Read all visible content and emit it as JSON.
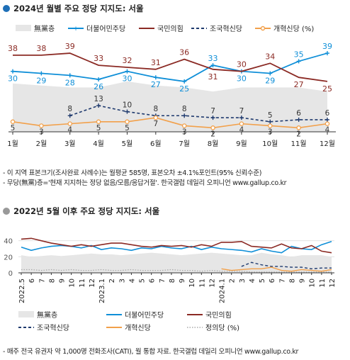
{
  "sections": {
    "top_title": "2024년 월별 주요 정당 지지도: 서울",
    "bottom_title": "2022년 5월 이후 주요 정당 지지도: 서울",
    "top_notes": [
      "- 이 지역 표본크기(조사완료 사례수)는 월평균 585명, 표본오차 ±4.1%포인트(95% 신뢰수준)",
      "- 무당(無黨)층='현재 지지하는 정당 없음/모름/응답거절'. 한국갤럽 데일리 오피니언 www.gallup.co.kr"
    ],
    "bottom_note": "- 매주 전국 유권자 약 1,000명 전화조사(CATI), 월 통합 자료. 한국갤럽 데일리 오피니언 www.gallup.co.kr"
  },
  "colors": {
    "title_dot_top": "#1e6fb7",
    "title_dot_bottom": "#999999",
    "none": "#e6e6e6",
    "dem": "#0f8fd8",
    "ppp": "#8b2a24",
    "rebuild": "#1f3a6e",
    "reform": "#f2a04a",
    "justice": "#aaaaaa"
  },
  "chart_data": [
    {
      "type": "line",
      "title": "2024년 월별 주요 정당 지지도: 서울",
      "categories": [
        "1월",
        "2월",
        "3월",
        "4월",
        "5월",
        "6월",
        "7월",
        "8월",
        "9월",
        "10월",
        "11월",
        "12월"
      ],
      "legend": [
        "無黨층",
        "더불어민주당",
        "국민의힘",
        "조국혁신당",
        "개혁신당 (%)"
      ],
      "series": [
        {
          "name": "無黨층",
          "kind": "area",
          "values": [
            24,
            23,
            22,
            22,
            25,
            23,
            22,
            20,
            22,
            22,
            22,
            20
          ]
        },
        {
          "name": "더불어민주당",
          "values": [
            30,
            29,
            28,
            26,
            30,
            27,
            25,
            33,
            30,
            29,
            35,
            39
          ]
        },
        {
          "name": "국민의힘",
          "values": [
            38,
            38,
            39,
            33,
            32,
            31,
            36,
            31,
            30,
            34,
            27,
            25
          ]
        },
        {
          "name": "조국혁신당",
          "values": [
            null,
            null,
            8,
            13,
            10,
            8,
            8,
            7,
            7,
            5,
            6,
            6
          ]
        },
        {
          "name": "개혁신당",
          "values": [
            5,
            3,
            4,
            5,
            5,
            7,
            3,
            2,
            4,
            3,
            2,
            4
          ]
        }
      ],
      "ylim": [
        0,
        45
      ]
    },
    {
      "type": "line",
      "title": "2022년 5월 이후 주요 정당 지지도: 서울",
      "y_ticks": [
        "0",
        "20",
        "40"
      ],
      "ylim": [
        0,
        45
      ],
      "x_ticks": [
        "2022.5",
        "6",
        "7",
        "8",
        "9",
        "10",
        "11",
        "12",
        "2023.1",
        "2",
        "3",
        "4",
        "5",
        "6",
        "7",
        "8",
        "9",
        "10",
        "11",
        "12",
        "2024.1",
        "2",
        "3",
        "4",
        "5",
        "6",
        "7",
        "8",
        "9",
        "10",
        "11",
        "12"
      ],
      "legend": [
        "無黨층",
        "더불어민주당",
        "국민의힘",
        "조국혁신당",
        "개혁신당",
        "정의당 (%)"
      ],
      "series": [
        {
          "name": "無黨층",
          "kind": "area",
          "values": [
            22,
            20,
            21,
            22,
            21,
            22,
            23,
            24,
            23,
            23,
            22,
            23,
            24,
            25,
            24,
            23,
            22,
            23,
            24,
            25,
            24,
            23,
            22,
            22,
            25,
            23,
            22,
            20,
            22,
            22,
            22,
            20
          ]
        },
        {
          "name": "더불어민주당",
          "values": [
            32,
            28,
            31,
            33,
            34,
            33,
            31,
            34,
            29,
            31,
            30,
            28,
            31,
            30,
            33,
            31,
            30,
            33,
            29,
            32,
            30,
            29,
            28,
            26,
            30,
            27,
            25,
            33,
            30,
            29,
            35,
            39
          ]
        },
        {
          "name": "국민의힘",
          "values": [
            42,
            43,
            40,
            37,
            35,
            33,
            35,
            33,
            35,
            37,
            37,
            35,
            33,
            32,
            34,
            33,
            34,
            32,
            35,
            33,
            38,
            38,
            39,
            33,
            32,
            31,
            36,
            31,
            30,
            34,
            27,
            25
          ]
        },
        {
          "name": "조국혁신당",
          "values": [
            null,
            null,
            null,
            null,
            null,
            null,
            null,
            null,
            null,
            null,
            null,
            null,
            null,
            null,
            null,
            null,
            null,
            null,
            null,
            null,
            null,
            null,
            8,
            13,
            10,
            8,
            8,
            7,
            7,
            5,
            6,
            6
          ]
        },
        {
          "name": "개혁신당",
          "values": [
            null,
            null,
            null,
            null,
            null,
            null,
            null,
            null,
            null,
            null,
            null,
            null,
            null,
            null,
            null,
            null,
            null,
            null,
            null,
            null,
            5,
            3,
            4,
            5,
            5,
            7,
            3,
            2,
            4,
            3,
            2,
            4
          ]
        },
        {
          "name": "정의당",
          "values": [
            4,
            4,
            3,
            4,
            3,
            4,
            3,
            3,
            4,
            3,
            3,
            4,
            3,
            3,
            3,
            4,
            3,
            3,
            2,
            3,
            2,
            2,
            2,
            1,
            1,
            1,
            1,
            1,
            1,
            1,
            1,
            1
          ]
        }
      ]
    }
  ]
}
